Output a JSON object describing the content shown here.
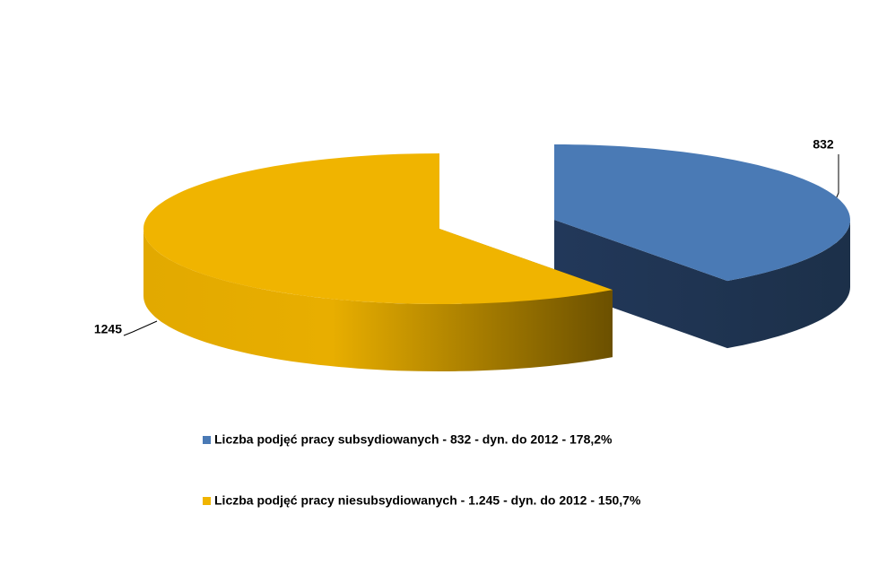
{
  "chart_data": {
    "type": "pie",
    "categories": [
      "Liczba podjęć pracy subsydiowanych - 832 - dyn. do 2012 - 178,2%",
      "Liczba podjęć pracy niesubsydiowanych - 1.245 - dyn. do 2012 - 150,7%"
    ],
    "values": [
      832,
      1245
    ],
    "colors": [
      "#4a7ab5",
      "#f0b400"
    ]
  }
}
